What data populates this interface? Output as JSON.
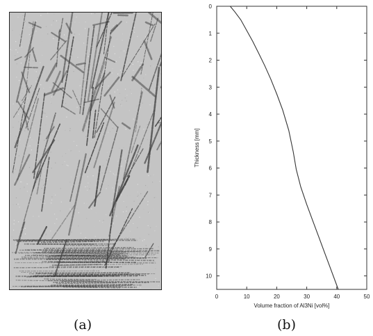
{
  "panels": {
    "left_label": "(a)",
    "right_label": "(b)"
  },
  "micrograph": {
    "description_icon": "micrograph-image",
    "colors": {
      "matrix": "#c4c4c4",
      "phase": "#3a3a3a"
    }
  },
  "chart_data": {
    "type": "line",
    "title": "",
    "xlabel": "Volume fraction of Al3Ni [vol%]",
    "ylabel": "Thickness [mm]",
    "xlim": [
      0,
      50
    ],
    "ylim": [
      0,
      10.5
    ],
    "y_inverted": true,
    "x_ticks": [
      0,
      10,
      20,
      30,
      40,
      50
    ],
    "y_ticks": [
      0,
      1,
      2,
      3,
      4,
      5,
      6,
      7,
      8,
      9,
      10
    ],
    "grid": false,
    "series": [
      {
        "x": [
          4.5,
          6,
          8,
          10,
          12,
          14,
          16,
          18,
          20,
          22,
          24,
          25.5,
          26.5,
          28,
          30,
          32,
          34,
          36,
          38,
          40.5
        ],
        "y": [
          0,
          0.2,
          0.5,
          0.9,
          1.3,
          1.75,
          2.2,
          2.7,
          3.25,
          3.85,
          4.6,
          5.4,
          6.05,
          6.7,
          7.35,
          7.95,
          8.55,
          9.15,
          9.75,
          10.5
        ]
      }
    ],
    "line_color": "#333333"
  }
}
